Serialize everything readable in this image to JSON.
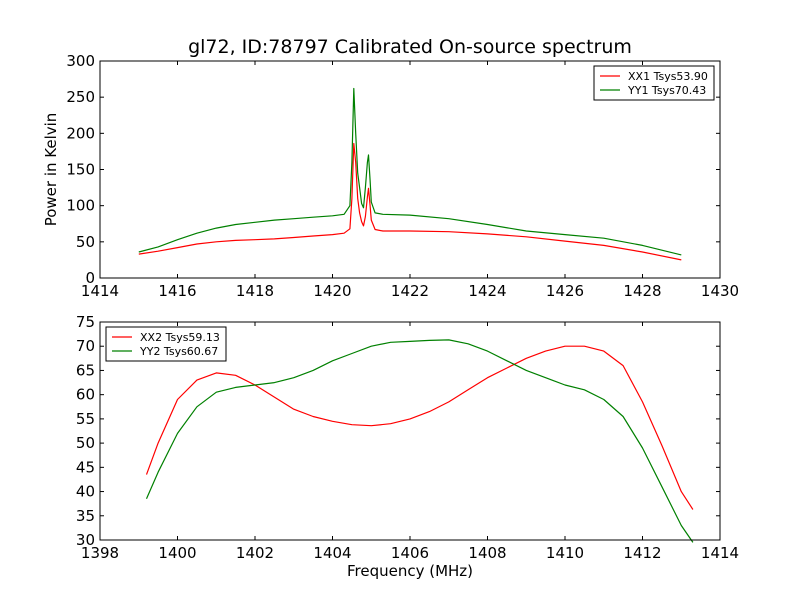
{
  "title": "gl72, ID:78797 Calibrated On-source spectrum",
  "chart_data": [
    {
      "type": "line",
      "title": "gl72, ID:78797 Calibrated On-source spectrum",
      "xlabel": "",
      "ylabel": "Power in Kelvin",
      "xlim": [
        1414,
        1430
      ],
      "ylim": [
        0,
        300
      ],
      "xticks": [
        1414,
        1416,
        1418,
        1420,
        1422,
        1424,
        1426,
        1428,
        1430
      ],
      "yticks": [
        0,
        50,
        100,
        150,
        200,
        250,
        300
      ],
      "legend_position": "upper-right",
      "grid": false,
      "series": [
        {
          "name": "XX1 Tsys53.90",
          "color": "#ff0000",
          "points": [
            [
              1415.0,
              33
            ],
            [
              1415.5,
              37
            ],
            [
              1416.0,
              42
            ],
            [
              1416.5,
              47
            ],
            [
              1417.0,
              50
            ],
            [
              1417.5,
              52
            ],
            [
              1418.0,
              53
            ],
            [
              1418.5,
              54
            ],
            [
              1419.0,
              56
            ],
            [
              1419.5,
              58
            ],
            [
              1420.0,
              60
            ],
            [
              1420.3,
              62
            ],
            [
              1420.45,
              68
            ],
            [
              1420.5,
              110
            ],
            [
              1420.55,
              186
            ],
            [
              1420.6,
              160
            ],
            [
              1420.65,
              110
            ],
            [
              1420.7,
              90
            ],
            [
              1420.75,
              78
            ],
            [
              1420.8,
              72
            ],
            [
              1420.85,
              85
            ],
            [
              1420.9,
              112
            ],
            [
              1420.93,
              124
            ],
            [
              1420.97,
              100
            ],
            [
              1421.0,
              80
            ],
            [
              1421.1,
              67
            ],
            [
              1421.3,
              65
            ],
            [
              1422.0,
              65
            ],
            [
              1423.0,
              64
            ],
            [
              1424.0,
              61
            ],
            [
              1425.0,
              57
            ],
            [
              1426.0,
              51
            ],
            [
              1427.0,
              45
            ],
            [
              1428.0,
              36
            ],
            [
              1429.0,
              25
            ]
          ]
        },
        {
          "name": "YY1 Tsys70.43",
          "color": "#008000",
          "points": [
            [
              1415.0,
              36
            ],
            [
              1415.5,
              43
            ],
            [
              1416.0,
              53
            ],
            [
              1416.5,
              62
            ],
            [
              1417.0,
              69
            ],
            [
              1417.5,
              74
            ],
            [
              1418.0,
              77
            ],
            [
              1418.5,
              80
            ],
            [
              1419.0,
              82
            ],
            [
              1419.5,
              84
            ],
            [
              1420.0,
              86
            ],
            [
              1420.3,
              88
            ],
            [
              1420.45,
              100
            ],
            [
              1420.5,
              160
            ],
            [
              1420.55,
              262
            ],
            [
              1420.6,
              200
            ],
            [
              1420.65,
              145
            ],
            [
              1420.7,
              125
            ],
            [
              1420.75,
              103
            ],
            [
              1420.8,
              97
            ],
            [
              1420.85,
              125
            ],
            [
              1420.9,
              160
            ],
            [
              1420.93,
              170
            ],
            [
              1420.97,
              135
            ],
            [
              1421.0,
              105
            ],
            [
              1421.1,
              90
            ],
            [
              1421.3,
              88
            ],
            [
              1422.0,
              87
            ],
            [
              1423.0,
              82
            ],
            [
              1424.0,
              74
            ],
            [
              1425.0,
              65
            ],
            [
              1426.0,
              60
            ],
            [
              1427.0,
              55
            ],
            [
              1428.0,
              45
            ],
            [
              1429.0,
              32
            ]
          ]
        }
      ]
    },
    {
      "type": "line",
      "title": "",
      "xlabel": "Frequency (MHz)",
      "ylabel": "",
      "xlim": [
        1398,
        1414
      ],
      "ylim": [
        30,
        75
      ],
      "xticks": [
        1398,
        1400,
        1402,
        1404,
        1406,
        1408,
        1410,
        1412,
        1414
      ],
      "yticks": [
        30,
        35,
        40,
        45,
        50,
        55,
        60,
        65,
        70,
        75
      ],
      "legend_position": "upper-left",
      "grid": false,
      "series": [
        {
          "name": "XX2 Tsys59.13",
          "color": "#ff0000",
          "points": [
            [
              1399.2,
              43.5
            ],
            [
              1399.5,
              50
            ],
            [
              1400.0,
              59
            ],
            [
              1400.5,
              63
            ],
            [
              1401.0,
              64.5
            ],
            [
              1401.5,
              64
            ],
            [
              1402.0,
              62
            ],
            [
              1402.5,
              59.5
            ],
            [
              1403.0,
              57
            ],
            [
              1403.5,
              55.5
            ],
            [
              1404.0,
              54.5
            ],
            [
              1404.5,
              53.8
            ],
            [
              1405.0,
              53.6
            ],
            [
              1405.5,
              54
            ],
            [
              1406.0,
              55
            ],
            [
              1406.5,
              56.5
            ],
            [
              1407.0,
              58.5
            ],
            [
              1407.5,
              61
            ],
            [
              1408.0,
              63.5
            ],
            [
              1408.5,
              65.5
            ],
            [
              1409.0,
              67.5
            ],
            [
              1409.5,
              69
            ],
            [
              1410.0,
              70
            ],
            [
              1410.5,
              70
            ],
            [
              1411.0,
              69
            ],
            [
              1411.5,
              66
            ],
            [
              1412.0,
              58.5
            ],
            [
              1412.5,
              49.5
            ],
            [
              1413.0,
              40
            ],
            [
              1413.3,
              36.3
            ]
          ]
        },
        {
          "name": "YY2 Tsys60.67",
          "color": "#008000",
          "points": [
            [
              1399.2,
              38.5
            ],
            [
              1399.5,
              44
            ],
            [
              1400.0,
              52
            ],
            [
              1400.5,
              57.5
            ],
            [
              1401.0,
              60.5
            ],
            [
              1401.5,
              61.5
            ],
            [
              1402.0,
              62
            ],
            [
              1402.5,
              62.5
            ],
            [
              1403.0,
              63.5
            ],
            [
              1403.5,
              65
            ],
            [
              1404.0,
              67
            ],
            [
              1404.5,
              68.5
            ],
            [
              1405.0,
              70
            ],
            [
              1405.5,
              70.8
            ],
            [
              1406.0,
              71
            ],
            [
              1406.5,
              71.2
            ],
            [
              1407.0,
              71.3
            ],
            [
              1407.5,
              70.5
            ],
            [
              1408.0,
              69
            ],
            [
              1408.5,
              67
            ],
            [
              1409.0,
              65
            ],
            [
              1409.5,
              63.5
            ],
            [
              1410.0,
              62
            ],
            [
              1410.5,
              61
            ],
            [
              1411.0,
              59
            ],
            [
              1411.5,
              55.5
            ],
            [
              1412.0,
              49
            ],
            [
              1412.5,
              41
            ],
            [
              1413.0,
              33
            ],
            [
              1413.3,
              29.5
            ]
          ]
        }
      ]
    }
  ]
}
